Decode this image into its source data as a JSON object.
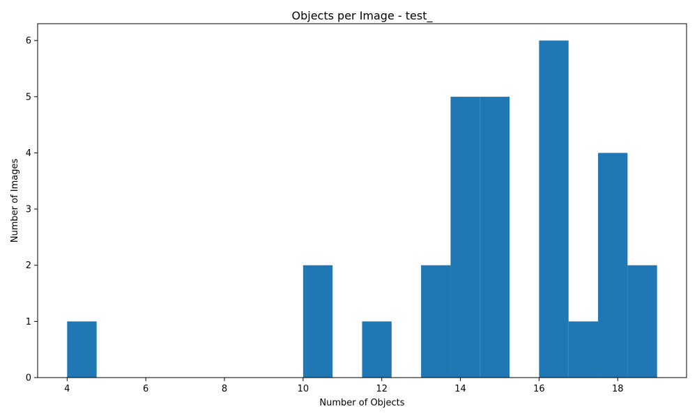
{
  "chart_data": {
    "type": "bar",
    "title": "Objects per Image - test_",
    "xlabel": "Number of Objects",
    "ylabel": "Number of Images",
    "xlim": [
      3.25,
      19.75
    ],
    "ylim": [
      0,
      6.3
    ],
    "x_ticks": [
      4,
      6,
      8,
      10,
      12,
      14,
      16,
      18
    ],
    "y_ticks": [
      0,
      1,
      2,
      3,
      4,
      5,
      6
    ],
    "grid": false,
    "legend": "none",
    "bar_color": "#1f77b4",
    "bins": [
      {
        "start": 4.0,
        "end": 4.75,
        "count": 1
      },
      {
        "start": 4.75,
        "end": 5.5,
        "count": 0
      },
      {
        "start": 5.5,
        "end": 6.25,
        "count": 0
      },
      {
        "start": 6.25,
        "end": 7.0,
        "count": 0
      },
      {
        "start": 7.0,
        "end": 7.75,
        "count": 0
      },
      {
        "start": 7.75,
        "end": 8.5,
        "count": 0
      },
      {
        "start": 8.5,
        "end": 9.25,
        "count": 0
      },
      {
        "start": 9.25,
        "end": 10.0,
        "count": 0
      },
      {
        "start": 10.0,
        "end": 10.75,
        "count": 2
      },
      {
        "start": 10.75,
        "end": 11.5,
        "count": 0
      },
      {
        "start": 11.5,
        "end": 12.25,
        "count": 1
      },
      {
        "start": 12.25,
        "end": 13.0,
        "count": 0
      },
      {
        "start": 13.0,
        "end": 13.75,
        "count": 2
      },
      {
        "start": 13.75,
        "end": 14.5,
        "count": 5
      },
      {
        "start": 14.5,
        "end": 15.25,
        "count": 5
      },
      {
        "start": 15.25,
        "end": 16.0,
        "count": 0
      },
      {
        "start": 16.0,
        "end": 16.75,
        "count": 6
      },
      {
        "start": 16.75,
        "end": 17.5,
        "count": 1
      },
      {
        "start": 17.5,
        "end": 18.25,
        "count": 4
      },
      {
        "start": 18.25,
        "end": 19.0,
        "count": 2
      }
    ]
  }
}
